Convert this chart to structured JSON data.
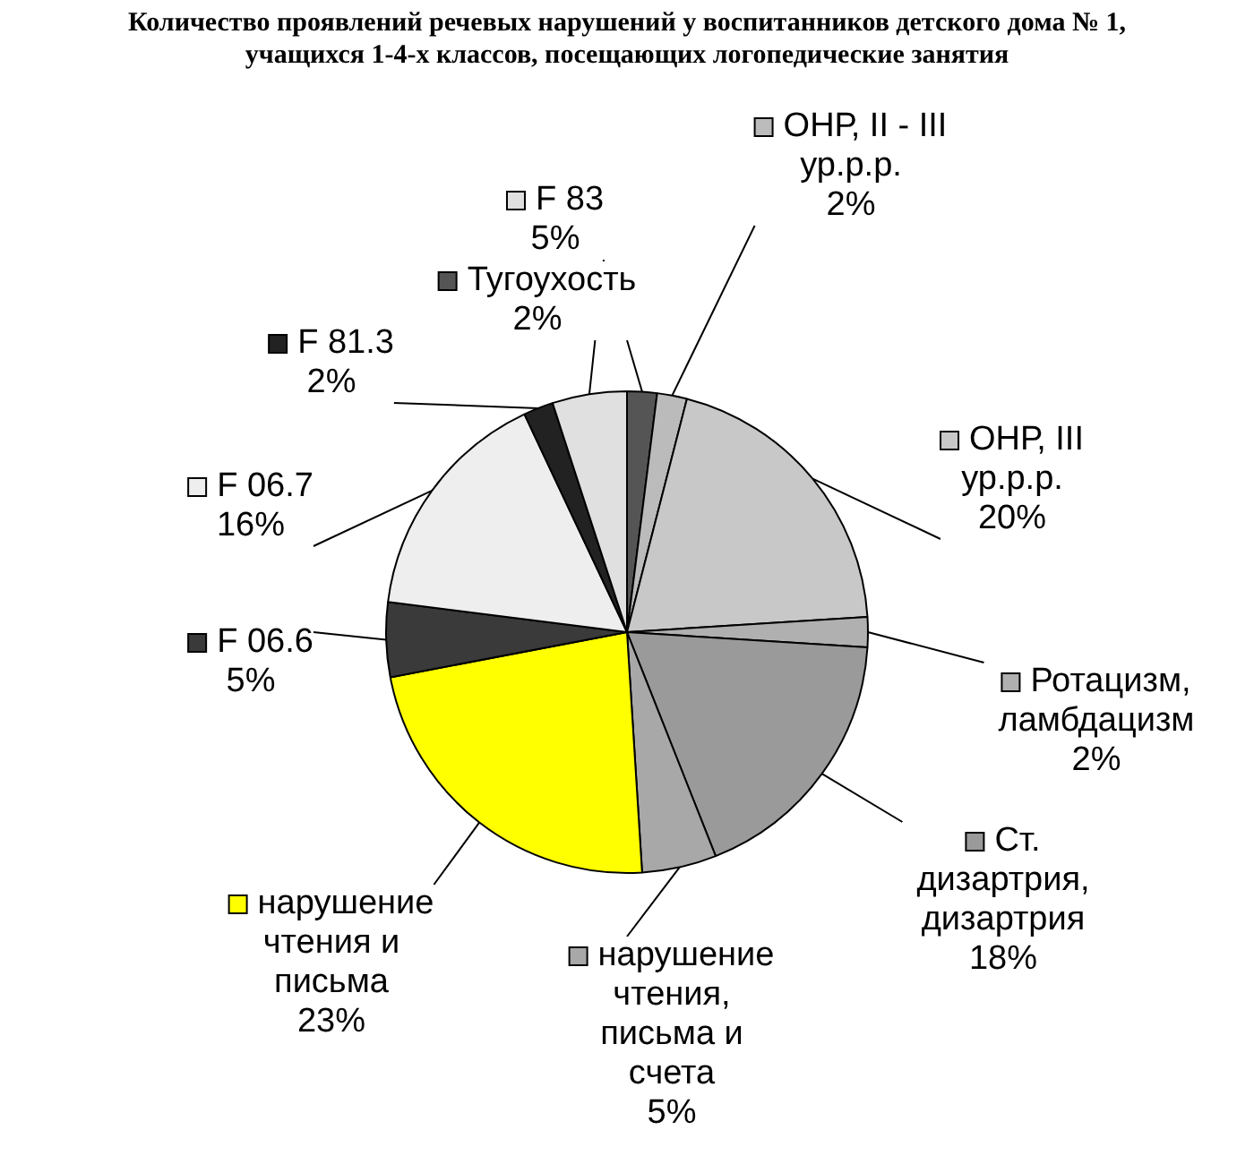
{
  "chart_data": {
    "type": "pie",
    "title": "Количество проявлений речевых нарушений у воспитанников детского дома № 1, учащихся 1-4-х классов, посещающих логопедические занятия",
    "categories": [
      "Тугоухость",
      "ОНР, II - III ур.р.р.",
      "ОНР, III ур.р.р.",
      "Ротацизм, ламбдацизм",
      "Ст. дизартрия, дизартрия",
      "нарушение чтения, письма и счета",
      "нарушение чтения и письма",
      "F 06.6",
      "F 06.7",
      "F 81.3",
      "F 83"
    ],
    "values": [
      2,
      2,
      20,
      2,
      18,
      5,
      23,
      5,
      16,
      2,
      5
    ],
    "colors": [
      "#555555",
      "#bbbbbb",
      "#c8c8c8",
      "#b0b0b0",
      "#9a9a9a",
      "#a8a8a8",
      "#ffff00",
      "#3a3a3a",
      "#eeeeee",
      "#222222",
      "#e0e0e0"
    ],
    "value_labels": [
      "2%",
      "2%",
      "20%",
      "2%",
      "18%",
      "5%",
      "23%",
      "5%",
      "16%",
      "2%",
      "5%"
    ],
    "legend": true
  }
}
